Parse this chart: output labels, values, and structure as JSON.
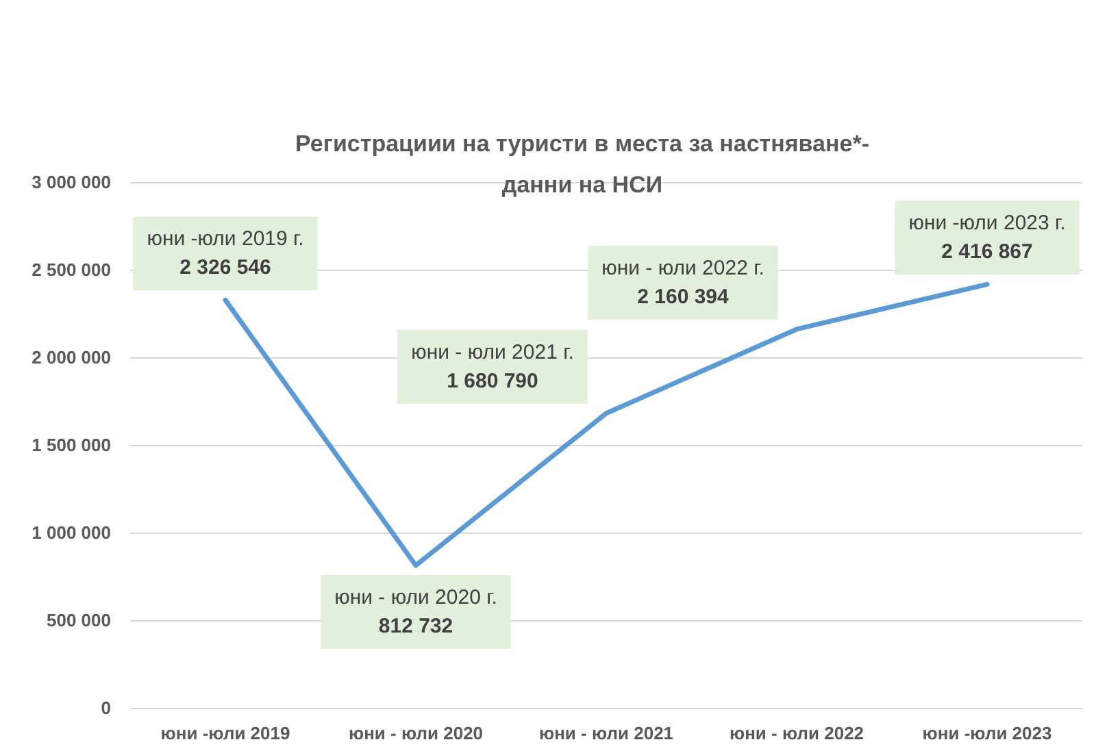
{
  "chart_data": {
    "type": "line",
    "title": "Регистрациии на туристи в места за настняване*-\nданни на НСИ",
    "categories": [
      "юни -юли 2019",
      "юни - юли 2020",
      "юни - юли 2021",
      "юни - юли 2022",
      "юни -юли 2023"
    ],
    "series": [
      {
        "color": "#5b9bd5",
        "values": [
          2326546,
          812732,
          1680790,
          2160394,
          2416867
        ],
        "value_labels": [
          "юни -юли 2019 г.\n2 326 546",
          "юни - юли 2020 г.\n812 732",
          "юни - юли 2021 г.\n1 680 790",
          "юни - юли 2022 г.\n2 160 394",
          "юни -юли 2023 г.\n2 416 867"
        ]
      }
    ],
    "ylim": [
      0,
      3000000
    ],
    "yticks": [
      {
        "value": 0,
        "label": "0"
      },
      {
        "value": 500000,
        "label": "500 000"
      },
      {
        "value": 1000000,
        "label": "1 000 000"
      },
      {
        "value": 1500000,
        "label": "1 500 000"
      },
      {
        "value": 2000000,
        "label": "2 000 000"
      },
      {
        "value": 2500000,
        "label": "2 500 000"
      },
      {
        "value": 3000000,
        "label": "3 000 000"
      }
    ],
    "grid": "y",
    "marker": "none",
    "line_style": "solid"
  }
}
